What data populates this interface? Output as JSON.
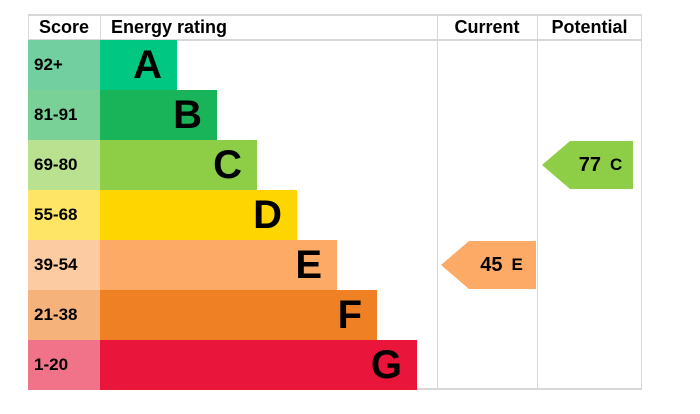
{
  "header": {
    "score": "Score",
    "energy_rating": "Energy rating",
    "current": "Current",
    "potential": "Potential"
  },
  "bands": [
    {
      "score": "92+",
      "letter": "A",
      "color": "#00c781",
      "tint": "#72cfa0"
    },
    {
      "score": "81-91",
      "letter": "B",
      "color": "#19b459",
      "tint": "#79d198"
    },
    {
      "score": "69-80",
      "letter": "C",
      "color": "#8dce46",
      "tint": "#bae190"
    },
    {
      "score": "55-68",
      "letter": "D",
      "color": "#ffd500",
      "tint": "#ffe566"
    },
    {
      "score": "39-54",
      "letter": "E",
      "color": "#fcaa65",
      "tint": "#fdcba2"
    },
    {
      "score": "21-38",
      "letter": "F",
      "color": "#ef8023",
      "tint": "#f5b27b"
    },
    {
      "score": "1-20",
      "letter": "G",
      "color": "#e9153b",
      "tint": "#f17389"
    }
  ],
  "arrows": {
    "current": {
      "value": "45",
      "band": "E",
      "color": "#fcaa65",
      "row_index": 4
    },
    "potential": {
      "value": "77",
      "band": "C",
      "color": "#8dce46",
      "row_index": 2
    }
  },
  "chart_data": {
    "type": "bar",
    "title": "Energy rating",
    "columns": [
      "Score",
      "Energy rating",
      "Current",
      "Potential"
    ],
    "categories": [
      "A",
      "B",
      "C",
      "D",
      "E",
      "F",
      "G"
    ],
    "band_score_ranges": [
      "92+",
      "81-91",
      "69-80",
      "55-68",
      "39-54",
      "21-38",
      "1-20"
    ],
    "band_colors": [
      "#00c781",
      "#19b459",
      "#8dce46",
      "#ffd500",
      "#fcaa65",
      "#ef8023",
      "#e9153b"
    ],
    "current": {
      "score": 45,
      "band": "E"
    },
    "potential": {
      "score": 77,
      "band": "C"
    },
    "legend_position": "none",
    "grid": "column-dividers-only"
  }
}
